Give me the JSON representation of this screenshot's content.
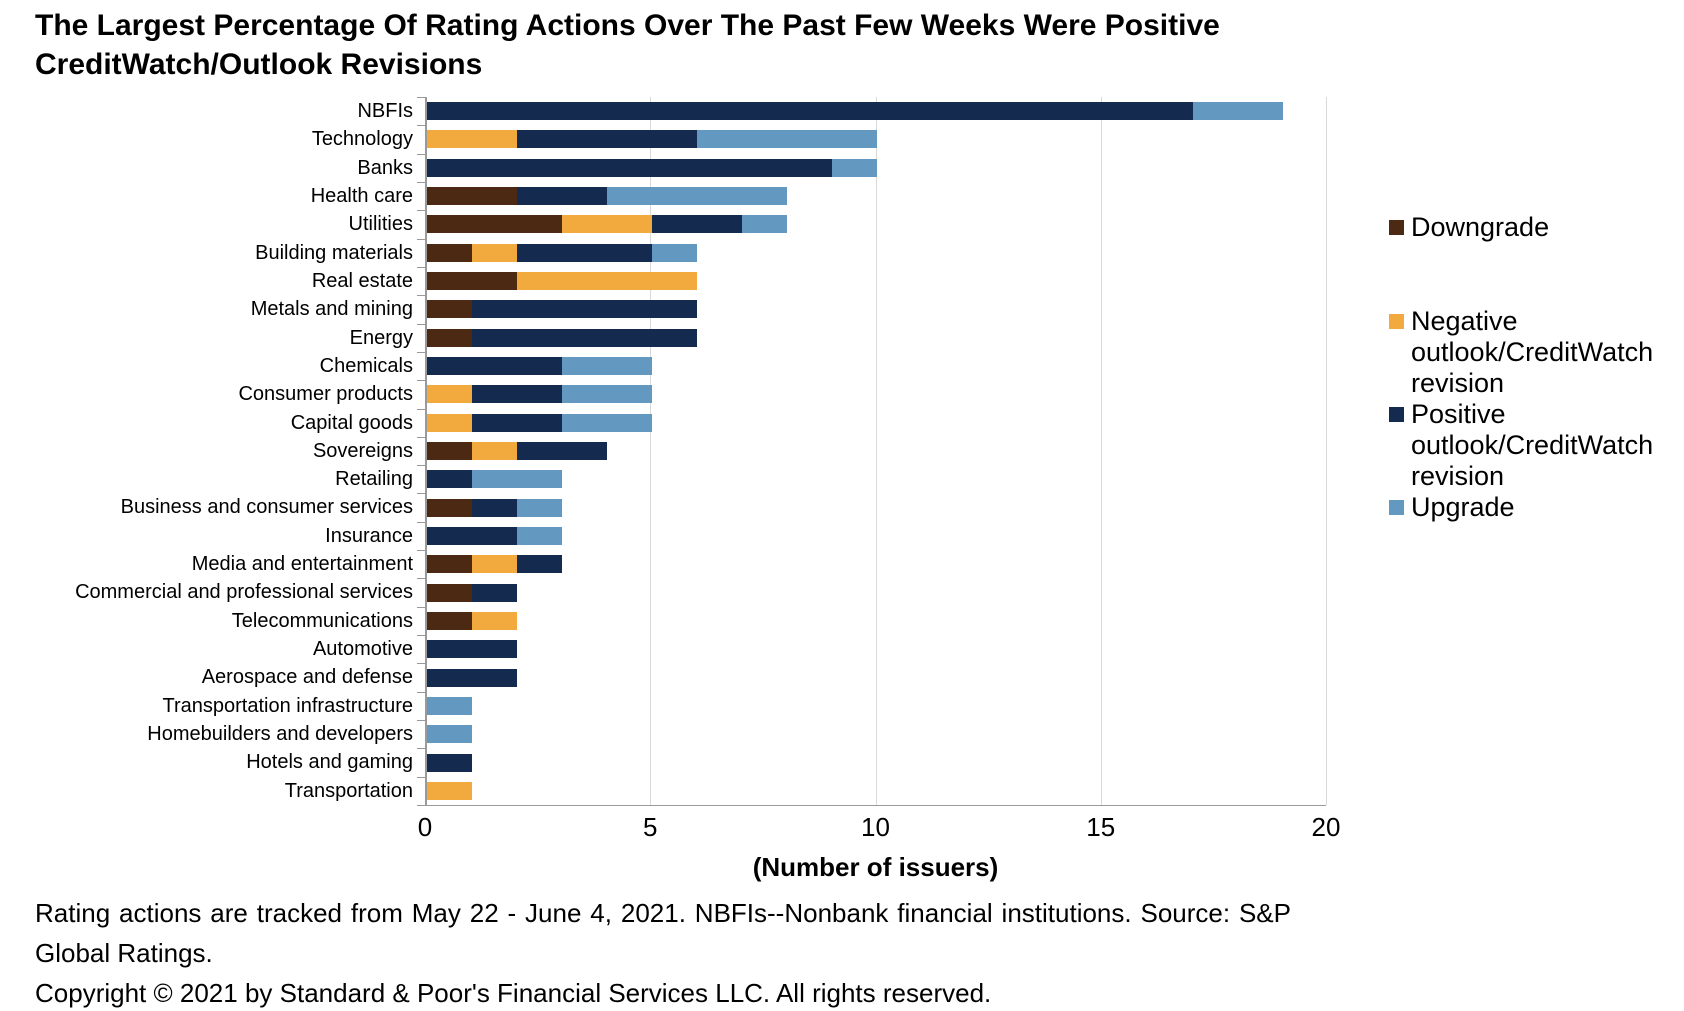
{
  "title": "The Largest Percentage Of Rating Actions Over The Past Few Weeks Were Positive CreditWatch/Outlook Revisions",
  "title_lines": [
    "The Largest Percentage Of Rating Actions Over The Past Few Weeks Were",
    "Positive CreditWatch/Outlook Revisions"
  ],
  "footnotes": {
    "note": "Rating actions are tracked from May 22 - June 4, 2021. NBFIs--Nonbank financial institutions. Source: S&P Global Ratings.",
    "copyright": "Copyright © 2021 by Standard & Poor's Financial Services LLC. All rights reserved."
  },
  "colors": {
    "downgrade": "#4c2913",
    "negative": "#f2a93e",
    "positive": "#142a4e",
    "upgrade": "#6399c0",
    "gridline": "#d9d9d9",
    "axis": "#9a9a9a"
  },
  "chart_data": {
    "type": "bar",
    "orientation": "horizontal",
    "stacked": true,
    "title": "The Largest Percentage Of Rating Actions Over The Past Few Weeks Were Positive CreditWatch/Outlook Revisions",
    "xlabel": "(Number of issuers)",
    "ylabel": "",
    "xlim": [
      0,
      20
    ],
    "xticks": [
      0,
      5,
      10,
      15,
      20
    ],
    "grid": true,
    "legend_position": "right",
    "categories": [
      "NBFIs",
      "Technology",
      "Banks",
      "Health care",
      "Utilities",
      "Building materials",
      "Real estate",
      "Metals and mining",
      "Energy",
      "Chemicals",
      "Consumer products",
      "Capital goods",
      "Sovereigns",
      "Retailing",
      "Business and consumer services",
      "Insurance",
      "Media and entertainment",
      "Commercial and professional services",
      "Telecommunications",
      "Automotive",
      "Aerospace and defense",
      "Transportation infrastructure",
      "Homebuilders and developers",
      "Hotels and gaming",
      "Transportation"
    ],
    "series": [
      {
        "name": "Downgrade",
        "color": "#4c2913",
        "values": [
          0,
          0,
          0,
          2,
          3,
          1,
          2,
          1,
          1,
          0,
          0,
          0,
          1,
          0,
          1,
          0,
          1,
          1,
          1,
          0,
          0,
          0,
          0,
          0,
          0
        ]
      },
      {
        "name": "Negative outlook/CreditWatch revision",
        "color": "#f2a93e",
        "values": [
          0,
          2,
          0,
          0,
          2,
          1,
          4,
          0,
          0,
          0,
          1,
          1,
          1,
          0,
          0,
          0,
          1,
          0,
          1,
          0,
          0,
          0,
          0,
          0,
          1
        ]
      },
      {
        "name": "Positive outlook/CreditWatch revision",
        "color": "#142a4e",
        "values": [
          17,
          4,
          9,
          2,
          2,
          3,
          0,
          5,
          5,
          3,
          2,
          2,
          2,
          1,
          1,
          2,
          1,
          1,
          0,
          2,
          2,
          0,
          0,
          1,
          0
        ]
      },
      {
        "name": "Upgrade",
        "color": "#6399c0",
        "values": [
          2,
          4,
          1,
          4,
          1,
          1,
          0,
          0,
          0,
          2,
          2,
          2,
          0,
          2,
          1,
          1,
          0,
          0,
          0,
          0,
          0,
          1,
          1,
          0,
          0
        ]
      }
    ],
    "totals": [
      19,
      10,
      10,
      8,
      8,
      6,
      6,
      6,
      6,
      5,
      5,
      5,
      4,
      3,
      3,
      3,
      3,
      2,
      2,
      2,
      2,
      1,
      1,
      1,
      1
    ]
  }
}
